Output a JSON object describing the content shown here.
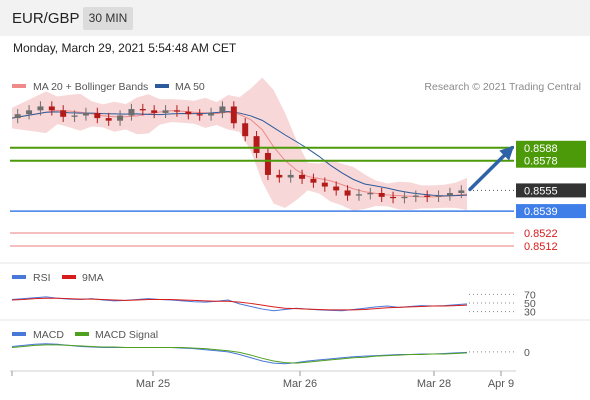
{
  "header": {
    "symbol": "EUR/GBP",
    "timeframe": "30 MIN",
    "datetime": "Monday, March 29, 2021 5:54:48 AM CET"
  },
  "colors": {
    "bollinger_band": "#f4c6c6",
    "ma20_legend": "#ee8a8a",
    "ma50": "#2c5a9c",
    "resistance": "#4c9a0a",
    "support_blue": "#3f7ee8",
    "support_red": "#f2aaaa",
    "current_price_badge": "#333333",
    "arrow": "#2f63a8",
    "candle_up": "#6e6e6e",
    "candle_down": "#b31b1b",
    "rsi": "#4a78d8",
    "rsi_9ma": "#d81c1c",
    "macd": "#4a78d8",
    "macd_signal": "#50a020"
  },
  "chart_data": [
    {
      "type": "candlestick",
      "title": "EUR/GBP",
      "legend": [
        "MA 20 + Bollinger Bands",
        "MA 50"
      ],
      "legend_position": "top-left",
      "watermark": "Research © 2021 Trading Central",
      "x_ticks": [
        "Mar 25",
        "Mar 26",
        "Mar 28",
        "Apr 9"
      ],
      "ylim": [
        0.8505,
        0.8625
      ],
      "price_levels": [
        {
          "label": "0.8588",
          "value": 0.8588,
          "kind": "resistance"
        },
        {
          "label": "0.8578",
          "value": 0.8578,
          "kind": "resistance"
        },
        {
          "label": "0.8555",
          "value": 0.8555,
          "kind": "current"
        },
        {
          "label": "0.8539",
          "value": 0.8539,
          "kind": "support"
        },
        {
          "label": "0.8522",
          "value": 0.8522,
          "kind": "support"
        },
        {
          "label": "0.8512",
          "value": 0.8512,
          "kind": "support"
        }
      ],
      "close_series": [
        0.8611,
        0.8614,
        0.8617,
        0.862,
        0.8617,
        0.8612,
        0.8613,
        0.8615,
        0.8611,
        0.8609,
        0.8613,
        0.8618,
        0.8617,
        0.8615,
        0.8617,
        0.8616,
        0.8614,
        0.8613,
        0.8615,
        0.862,
        0.8607,
        0.8597,
        0.8584,
        0.8567,
        0.8565,
        0.8567,
        0.8564,
        0.8561,
        0.8558,
        0.8555,
        0.8551,
        0.8552,
        0.8553,
        0.855,
        0.8549,
        0.855,
        0.8551,
        0.855,
        0.8551,
        0.8553,
        0.8555
      ],
      "arrow": {
        "from": 0.8555,
        "to": 0.8588
      }
    },
    {
      "type": "line",
      "legend": [
        "RSI",
        "9MA"
      ],
      "y_ticks": [
        "70",
        "50",
        "30"
      ],
      "ylim": [
        20,
        80
      ],
      "series": [
        {
          "name": "RSI",
          "values": [
            58,
            60,
            62,
            64,
            61,
            59,
            58,
            60,
            57,
            55,
            56,
            58,
            60,
            58,
            57,
            55,
            53,
            52,
            54,
            57,
            48,
            42,
            36,
            32,
            35,
            38,
            36,
            34,
            33,
            32,
            35,
            38,
            41,
            43,
            40,
            42,
            44,
            43,
            44,
            46,
            48
          ]
        },
        {
          "name": "9MA",
          "values": [
            57,
            58,
            60,
            61,
            61,
            60,
            59,
            59,
            58,
            57,
            56,
            57,
            58,
            58,
            58,
            57,
            56,
            55,
            54,
            54,
            52,
            49,
            45,
            41,
            38,
            37,
            36,
            35,
            34,
            34,
            34,
            35,
            37,
            39,
            40,
            41,
            42,
            43,
            43,
            44,
            45
          ]
        }
      ]
    },
    {
      "type": "line",
      "legend": [
        "MACD",
        "MACD Signal"
      ],
      "y_ticks": [
        "0"
      ],
      "ylim": [
        -30,
        22
      ],
      "series": [
        {
          "name": "MACD",
          "values": [
            10,
            12,
            14,
            15,
            14,
            12,
            10,
            9,
            8,
            8,
            8,
            8,
            8,
            8,
            8,
            7,
            6,
            4,
            2,
            0,
            -5,
            -11,
            -17,
            -21,
            -22,
            -20,
            -17,
            -15,
            -13,
            -11,
            -9,
            -8,
            -7,
            -6,
            -5,
            -5,
            -4,
            -4,
            -3,
            -2,
            -1
          ]
        },
        {
          "name": "MACD Signal",
          "values": [
            8,
            10,
            12,
            13,
            13,
            12,
            11,
            10,
            9,
            9,
            8,
            8,
            8,
            8,
            8,
            8,
            7,
            6,
            4,
            2,
            -1,
            -6,
            -12,
            -17,
            -20,
            -21,
            -19,
            -17,
            -15,
            -13,
            -11,
            -10,
            -8,
            -7,
            -6,
            -5,
            -5,
            -4,
            -4,
            -3,
            -2
          ]
        }
      ]
    }
  ]
}
